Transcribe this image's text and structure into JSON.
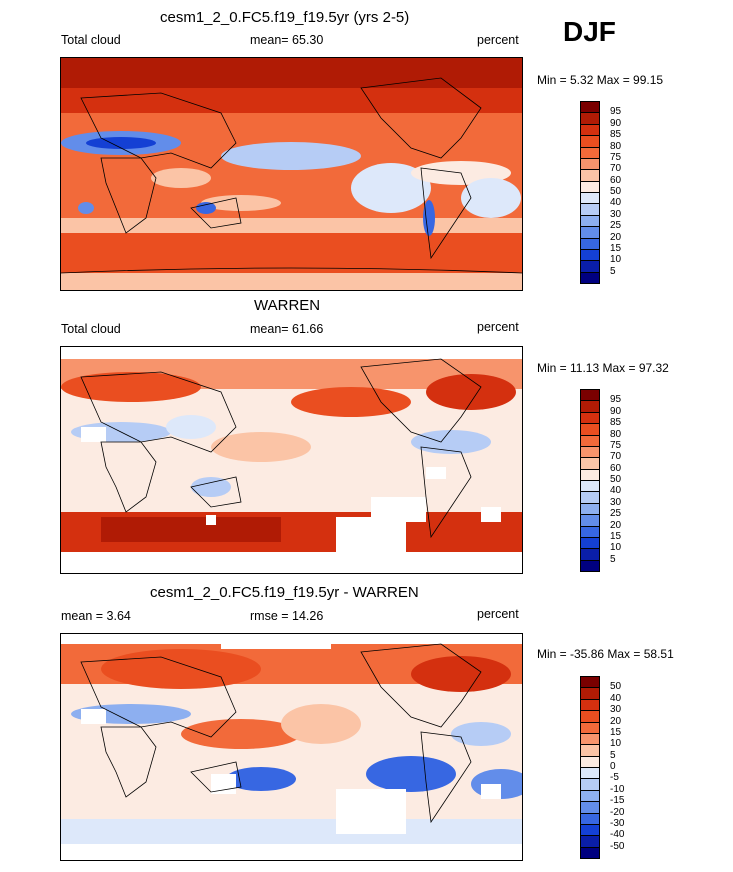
{
  "season": "DJF",
  "panels": [
    {
      "id": "model",
      "title": "cesm1_2_0.FC5.f19_f19.5yr (yrs 2-5)",
      "left_label": "Total cloud",
      "center_label": "mean=  65.30",
      "right_label": "percent",
      "minmax": "Min =   5.32 Max =  99.15",
      "colorbar_labels": [
        "95",
        "90",
        "85",
        "80",
        "75",
        "70",
        "60",
        "50",
        "40",
        "30",
        "25",
        "20",
        "15",
        "10",
        "5"
      ]
    },
    {
      "id": "obs",
      "title": "WARREN",
      "left_label": "Total cloud",
      "center_label": "mean=  61.66",
      "right_label": "percent",
      "minmax": "Min =  11.13 Max =  97.32",
      "colorbar_labels": [
        "95",
        "90",
        "85",
        "80",
        "75",
        "70",
        "60",
        "50",
        "40",
        "30",
        "25",
        "20",
        "15",
        "10",
        "5"
      ]
    },
    {
      "id": "diff",
      "title": "cesm1_2_0.FC5.f19_f19.5yr - WARREN",
      "left_label": "mean =   3.64",
      "center_label": "rmse =  14.26",
      "right_label": "percent",
      "minmax": "Min = -35.86 Max =  58.51",
      "colorbar_labels": [
        "50",
        "40",
        "30",
        "20",
        "15",
        "10",
        "5",
        "0",
        "-5",
        "-10",
        "-15",
        "-20",
        "-30",
        "-40",
        "-50"
      ]
    }
  ],
  "colorbar_colors": [
    "#7a0000",
    "#b01b05",
    "#d4300f",
    "#ea4e20",
    "#f26a3a",
    "#f7946c",
    "#fbc4a6",
    "#fcebe2",
    "#dde8fa",
    "#b6ccf5",
    "#8daff0",
    "#628dea",
    "#3767e2",
    "#1440d4",
    "#0a1ea8",
    "#000080"
  ]
}
